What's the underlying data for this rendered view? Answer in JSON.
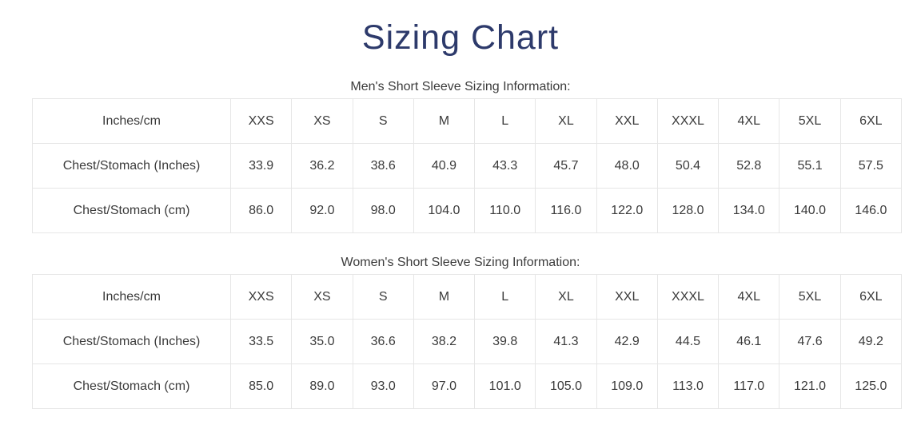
{
  "page": {
    "title": "Sizing Chart"
  },
  "colors": {
    "title_navy": "#2d3a6b",
    "body_text": "#3b3b3b",
    "table_border": "#e6e6e6",
    "background": "#ffffff"
  },
  "tables": [
    {
      "caption": "Men's Short Sleeve Sizing Information:",
      "headers": [
        "Inches/cm",
        "XXS",
        "XS",
        "S",
        "M",
        "L",
        "XL",
        "XXL",
        "XXXL",
        "4XL",
        "5XL",
        "6XL"
      ],
      "rows": [
        {
          "label": "Chest/Stomach (Inches)",
          "values": [
            "33.9",
            "36.2",
            "38.6",
            "40.9",
            "43.3",
            "45.7",
            "48.0",
            "50.4",
            "52.8",
            "55.1",
            "57.5"
          ]
        },
        {
          "label": "Chest/Stomach (cm)",
          "values": [
            "86.0",
            "92.0",
            "98.0",
            "104.0",
            "110.0",
            "116.0",
            "122.0",
            "128.0",
            "134.0",
            "140.0",
            "146.0"
          ]
        }
      ]
    },
    {
      "caption": "Women's Short Sleeve Sizing Information:",
      "headers": [
        "Inches/cm",
        "XXS",
        "XS",
        "S",
        "M",
        "L",
        "XL",
        "XXL",
        "XXXL",
        "4XL",
        "5XL",
        "6XL"
      ],
      "rows": [
        {
          "label": "Chest/Stomach (Inches)",
          "values": [
            "33.5",
            "35.0",
            "36.6",
            "38.2",
            "39.8",
            "41.3",
            "42.9",
            "44.5",
            "46.1",
            "47.6",
            "49.2"
          ]
        },
        {
          "label": "Chest/Stomach (cm)",
          "values": [
            "85.0",
            "89.0",
            "93.0",
            "97.0",
            "101.0",
            "105.0",
            "109.0",
            "113.0",
            "117.0",
            "121.0",
            "125.0"
          ]
        }
      ]
    }
  ]
}
